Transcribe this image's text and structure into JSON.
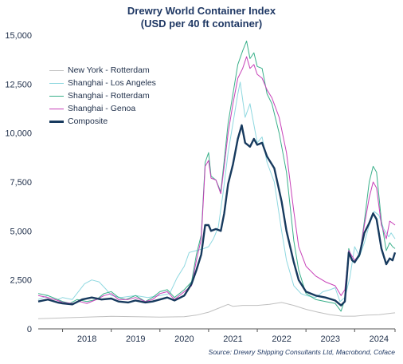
{
  "title": "Drewry World Container Index",
  "subtitle": "(USD per 40 ft container)",
  "source": "Source: Drewry Shipping Consultants Ltd, Macrobond, Coface",
  "chart_data": {
    "type": "line",
    "ylim": [
      0,
      15000
    ],
    "xlim": [
      2017.5,
      2024.83
    ],
    "y_ticks": [
      "0",
      "2,500",
      "5,000",
      "7,500",
      "10,000",
      "12,500",
      "15,000"
    ],
    "y_tick_values": [
      0,
      2500,
      5000,
      7500,
      10000,
      12500,
      15000
    ],
    "x_ticks": [
      "2018",
      "2019",
      "2020",
      "2021",
      "2022",
      "2023",
      "2024"
    ],
    "legend_position": "top-left",
    "series": [
      {
        "name": "New York - Rotterdam",
        "color": "#c0c0c0",
        "width": 1,
        "points": [
          [
            2017.5,
            520
          ],
          [
            2018.0,
            560
          ],
          [
            2018.5,
            600
          ],
          [
            2019.0,
            640
          ],
          [
            2019.5,
            620
          ],
          [
            2020.0,
            600
          ],
          [
            2020.5,
            620
          ],
          [
            2020.75,
            700
          ],
          [
            2021.0,
            850
          ],
          [
            2021.25,
            1100
          ],
          [
            2021.4,
            1250
          ],
          [
            2021.5,
            1150
          ],
          [
            2021.7,
            1200
          ],
          [
            2022.0,
            1200
          ],
          [
            2022.25,
            1250
          ],
          [
            2022.5,
            1350
          ],
          [
            2022.75,
            1200
          ],
          [
            2023.0,
            1000
          ],
          [
            2023.25,
            850
          ],
          [
            2023.5,
            720
          ],
          [
            2023.75,
            650
          ],
          [
            2024.0,
            650
          ],
          [
            2024.25,
            700
          ],
          [
            2024.5,
            720
          ],
          [
            2024.75,
            800
          ],
          [
            2024.83,
            820
          ]
        ]
      },
      {
        "name": "Shanghai - Los Angeles",
        "color": "#8fd8e0",
        "width": 1,
        "points": [
          [
            2017.5,
            1500
          ],
          [
            2017.7,
            1700
          ],
          [
            2017.9,
            1500
          ],
          [
            2018.0,
            1600
          ],
          [
            2018.2,
            1500
          ],
          [
            2018.45,
            2300
          ],
          [
            2018.6,
            2500
          ],
          [
            2018.75,
            2400
          ],
          [
            2018.9,
            2000
          ],
          [
            2019.0,
            1700
          ],
          [
            2019.2,
            1600
          ],
          [
            2019.5,
            1700
          ],
          [
            2019.75,
            1600
          ],
          [
            2020.0,
            1700
          ],
          [
            2020.2,
            1800
          ],
          [
            2020.35,
            2600
          ],
          [
            2020.5,
            3200
          ],
          [
            2020.6,
            3900
          ],
          [
            2020.75,
            4000
          ],
          [
            2020.9,
            4100
          ],
          [
            2021.0,
            4200
          ],
          [
            2021.1,
            4600
          ],
          [
            2021.2,
            5200
          ],
          [
            2021.3,
            7000
          ],
          [
            2021.4,
            9000
          ],
          [
            2021.5,
            10500
          ],
          [
            2021.6,
            12000
          ],
          [
            2021.65,
            12600
          ],
          [
            2021.75,
            10800
          ],
          [
            2021.85,
            11500
          ],
          [
            2022.0,
            9500
          ],
          [
            2022.1,
            9800
          ],
          [
            2022.2,
            8500
          ],
          [
            2022.35,
            7500
          ],
          [
            2022.5,
            5000
          ],
          [
            2022.6,
            3500
          ],
          [
            2022.75,
            2200
          ],
          [
            2022.9,
            1800
          ],
          [
            2023.0,
            1700
          ],
          [
            2023.2,
            1600
          ],
          [
            2023.35,
            1900
          ],
          [
            2023.5,
            2000
          ],
          [
            2023.6,
            2100
          ],
          [
            2023.7,
            1400
          ],
          [
            2023.8,
            1600
          ],
          [
            2023.9,
            2600
          ],
          [
            2024.0,
            4200
          ],
          [
            2024.1,
            3700
          ],
          [
            2024.2,
            4400
          ],
          [
            2024.3,
            5300
          ],
          [
            2024.4,
            6000
          ],
          [
            2024.5,
            5800
          ],
          [
            2024.6,
            5100
          ],
          [
            2024.7,
            4700
          ],
          [
            2024.75,
            4900
          ],
          [
            2024.83,
            4600
          ]
        ]
      },
      {
        "name": "Shanghai - Rotterdam",
        "color": "#3ab08a",
        "width": 1,
        "points": [
          [
            2017.5,
            1800
          ],
          [
            2017.7,
            1700
          ],
          [
            2017.9,
            1500
          ],
          [
            2018.0,
            1400
          ],
          [
            2018.15,
            1300
          ],
          [
            2018.3,
            1500
          ],
          [
            2018.5,
            1400
          ],
          [
            2018.7,
            1500
          ],
          [
            2018.85,
            1800
          ],
          [
            2019.0,
            1900
          ],
          [
            2019.15,
            1600
          ],
          [
            2019.3,
            1500
          ],
          [
            2019.5,
            1700
          ],
          [
            2019.7,
            1400
          ],
          [
            2019.85,
            1600
          ],
          [
            2020.0,
            1900
          ],
          [
            2020.15,
            2000
          ],
          [
            2020.3,
            1600
          ],
          [
            2020.5,
            2000
          ],
          [
            2020.65,
            2400
          ],
          [
            2020.75,
            3800
          ],
          [
            2020.85,
            4800
          ],
          [
            2020.93,
            8500
          ],
          [
            2021.0,
            9000
          ],
          [
            2021.05,
            7800
          ],
          [
            2021.15,
            7600
          ],
          [
            2021.25,
            7000
          ],
          [
            2021.32,
            8600
          ],
          [
            2021.4,
            10500
          ],
          [
            2021.5,
            12000
          ],
          [
            2021.6,
            13500
          ],
          [
            2021.7,
            14200
          ],
          [
            2021.78,
            14700
          ],
          [
            2021.85,
            13800
          ],
          [
            2021.93,
            14100
          ],
          [
            2022.0,
            13400
          ],
          [
            2022.1,
            13300
          ],
          [
            2022.2,
            12000
          ],
          [
            2022.3,
            11500
          ],
          [
            2022.45,
            10000
          ],
          [
            2022.6,
            8000
          ],
          [
            2022.75,
            4500
          ],
          [
            2022.85,
            3000
          ],
          [
            2023.0,
            1800
          ],
          [
            2023.2,
            1500
          ],
          [
            2023.4,
            1400
          ],
          [
            2023.6,
            1300
          ],
          [
            2023.72,
            900
          ],
          [
            2023.8,
            1500
          ],
          [
            2023.88,
            4100
          ],
          [
            2023.95,
            3500
          ],
          [
            2024.0,
            3400
          ],
          [
            2024.1,
            3700
          ],
          [
            2024.2,
            5500
          ],
          [
            2024.3,
            7500
          ],
          [
            2024.38,
            8300
          ],
          [
            2024.45,
            8000
          ],
          [
            2024.55,
            5500
          ],
          [
            2024.65,
            4000
          ],
          [
            2024.72,
            4400
          ],
          [
            2024.78,
            4200
          ],
          [
            2024.83,
            4100
          ]
        ]
      },
      {
        "name": "Shanghai - Genoa",
        "color": "#c740b8",
        "width": 1,
        "points": [
          [
            2017.5,
            1700
          ],
          [
            2017.7,
            1600
          ],
          [
            2017.9,
            1450
          ],
          [
            2018.0,
            1350
          ],
          [
            2018.2,
            1300
          ],
          [
            2018.35,
            1400
          ],
          [
            2018.5,
            1300
          ],
          [
            2018.7,
            1500
          ],
          [
            2018.85,
            1700
          ],
          [
            2019.0,
            1800
          ],
          [
            2019.15,
            1500
          ],
          [
            2019.35,
            1500
          ],
          [
            2019.5,
            1600
          ],
          [
            2019.7,
            1400
          ],
          [
            2019.85,
            1500
          ],
          [
            2020.0,
            1800
          ],
          [
            2020.15,
            1900
          ],
          [
            2020.3,
            1500
          ],
          [
            2020.5,
            1900
          ],
          [
            2020.65,
            2200
          ],
          [
            2020.75,
            3500
          ],
          [
            2020.85,
            4600
          ],
          [
            2020.93,
            8300
          ],
          [
            2021.0,
            8600
          ],
          [
            2021.05,
            7700
          ],
          [
            2021.15,
            7600
          ],
          [
            2021.25,
            6900
          ],
          [
            2021.32,
            8300
          ],
          [
            2021.4,
            10000
          ],
          [
            2021.5,
            11500
          ],
          [
            2021.6,
            12800
          ],
          [
            2021.7,
            13300
          ],
          [
            2021.78,
            13900
          ],
          [
            2021.85,
            13300
          ],
          [
            2021.93,
            13500
          ],
          [
            2022.0,
            13000
          ],
          [
            2022.1,
            12800
          ],
          [
            2022.2,
            12200
          ],
          [
            2022.3,
            11800
          ],
          [
            2022.45,
            10800
          ],
          [
            2022.6,
            9000
          ],
          [
            2022.75,
            6000
          ],
          [
            2022.85,
            4200
          ],
          [
            2023.0,
            3200
          ],
          [
            2023.2,
            2700
          ],
          [
            2023.4,
            2400
          ],
          [
            2023.6,
            2200
          ],
          [
            2023.72,
            1700
          ],
          [
            2023.8,
            2000
          ],
          [
            2023.88,
            4000
          ],
          [
            2023.95,
            3700
          ],
          [
            2024.0,
            3500
          ],
          [
            2024.1,
            3800
          ],
          [
            2024.2,
            5300
          ],
          [
            2024.3,
            6700
          ],
          [
            2024.38,
            7500
          ],
          [
            2024.45,
            7200
          ],
          [
            2024.55,
            5300
          ],
          [
            2024.65,
            4600
          ],
          [
            2024.72,
            5500
          ],
          [
            2024.78,
            5400
          ],
          [
            2024.83,
            5300
          ]
        ]
      },
      {
        "name": "Composite",
        "color": "#173a5e",
        "width": 2.4,
        "points": [
          [
            2017.5,
            1400
          ],
          [
            2017.7,
            1500
          ],
          [
            2017.9,
            1350
          ],
          [
            2018.0,
            1300
          ],
          [
            2018.2,
            1250
          ],
          [
            2018.4,
            1500
          ],
          [
            2018.6,
            1600
          ],
          [
            2018.8,
            1500
          ],
          [
            2019.0,
            1550
          ],
          [
            2019.15,
            1400
          ],
          [
            2019.35,
            1350
          ],
          [
            2019.5,
            1450
          ],
          [
            2019.7,
            1350
          ],
          [
            2019.85,
            1400
          ],
          [
            2020.0,
            1500
          ],
          [
            2020.15,
            1600
          ],
          [
            2020.3,
            1450
          ],
          [
            2020.5,
            1700
          ],
          [
            2020.65,
            2300
          ],
          [
            2020.75,
            3000
          ],
          [
            2020.85,
            3800
          ],
          [
            2020.93,
            5300
          ],
          [
            2021.0,
            5300
          ],
          [
            2021.05,
            5000
          ],
          [
            2021.15,
            5100
          ],
          [
            2021.25,
            5000
          ],
          [
            2021.32,
            5900
          ],
          [
            2021.4,
            7400
          ],
          [
            2021.5,
            8400
          ],
          [
            2021.6,
            9700
          ],
          [
            2021.68,
            10400
          ],
          [
            2021.75,
            9500
          ],
          [
            2021.85,
            9300
          ],
          [
            2021.93,
            9700
          ],
          [
            2022.0,
            9400
          ],
          [
            2022.1,
            9500
          ],
          [
            2022.2,
            8800
          ],
          [
            2022.35,
            8200
          ],
          [
            2022.5,
            6500
          ],
          [
            2022.6,
            5000
          ],
          [
            2022.75,
            3400
          ],
          [
            2022.85,
            2500
          ],
          [
            2023.0,
            1900
          ],
          [
            2023.2,
            1700
          ],
          [
            2023.4,
            1600
          ],
          [
            2023.6,
            1450
          ],
          [
            2023.72,
            1200
          ],
          [
            2023.8,
            1400
          ],
          [
            2023.88,
            3900
          ],
          [
            2023.95,
            3500
          ],
          [
            2024.0,
            3400
          ],
          [
            2024.1,
            3800
          ],
          [
            2024.2,
            4900
          ],
          [
            2024.3,
            5400
          ],
          [
            2024.38,
            5900
          ],
          [
            2024.45,
            5600
          ],
          [
            2024.55,
            4100
          ],
          [
            2024.65,
            3300
          ],
          [
            2024.72,
            3600
          ],
          [
            2024.78,
            3500
          ],
          [
            2024.83,
            3900
          ]
        ]
      }
    ]
  }
}
